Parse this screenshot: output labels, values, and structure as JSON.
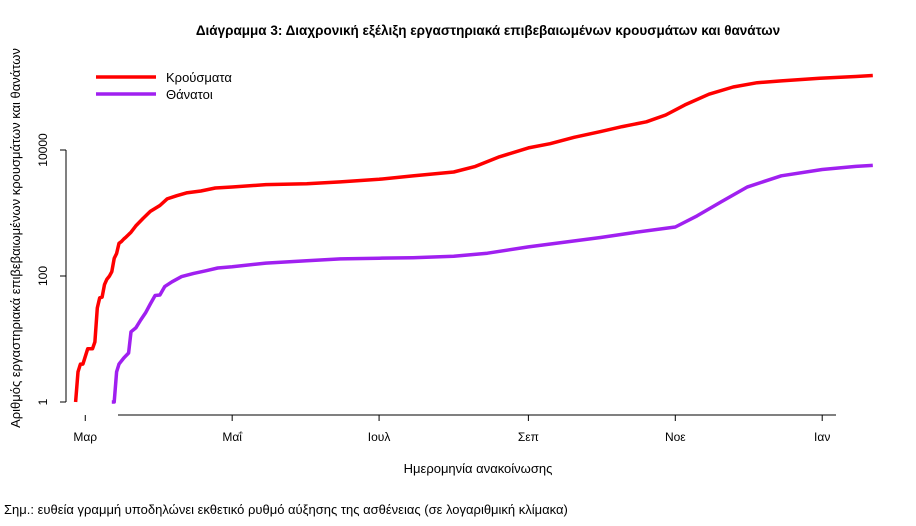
{
  "chart_data": {
    "type": "line",
    "title": "Διάγραμμα 3: Διαχρονική εξέλιξη εργαστηριακά επιβεβαιωμένων κρουσμάτων και θανάτων",
    "xlabel": "Ημερομηνία ανακοίνωσης",
    "ylabel": "Αριθμός εργαστηριακά επιβεβαιωμένων κρουσμάτων και θανάτων",
    "y_scale": "log",
    "ylim": [
      1,
      120000
    ],
    "y_ticks": [
      1,
      100,
      10000
    ],
    "y_tick_labels": [
      "1",
      "100",
      "10000"
    ],
    "xlim": [
      "2020-02-22",
      "2021-01-25"
    ],
    "x_ticks": [
      "2020-03-01",
      "2020-05-01",
      "2020-07-01",
      "2020-09-01",
      "2020-11-01",
      "2021-01-01"
    ],
    "x_tick_labels": [
      "Μαρ",
      "Μαΐ",
      "Ιουλ",
      "Σεπ",
      "Νοε",
      "Ιαν"
    ],
    "legend_position": "top-left",
    "grid": false,
    "series": [
      {
        "name": "Κρούσματα",
        "color": "#ff0000",
        "points": [
          [
            "2020-02-26",
            1
          ],
          [
            "2020-02-27",
            3
          ],
          [
            "2020-02-28",
            4
          ],
          [
            "2020-02-29",
            4
          ],
          [
            "2020-03-02",
            7
          ],
          [
            "2020-03-04",
            7
          ],
          [
            "2020-03-05",
            9
          ],
          [
            "2020-03-06",
            31
          ],
          [
            "2020-03-07",
            45
          ],
          [
            "2020-03-08",
            46
          ],
          [
            "2020-03-09",
            73
          ],
          [
            "2020-03-10",
            89
          ],
          [
            "2020-03-11",
            99
          ],
          [
            "2020-03-12",
            117
          ],
          [
            "2020-03-13",
            190
          ],
          [
            "2020-03-14",
            228
          ],
          [
            "2020-03-15",
            331
          ],
          [
            "2020-03-16",
            352
          ],
          [
            "2020-03-17",
            387
          ],
          [
            "2020-03-18",
            418
          ],
          [
            "2020-03-20",
            495
          ],
          [
            "2020-03-22",
            624
          ],
          [
            "2020-03-25",
            821
          ],
          [
            "2020-03-28",
            1061
          ],
          [
            "2020-04-01",
            1314
          ],
          [
            "2020-04-04",
            1673
          ],
          [
            "2020-04-08",
            1884
          ],
          [
            "2020-04-12",
            2081
          ],
          [
            "2020-04-18",
            2235
          ],
          [
            "2020-04-24",
            2490
          ],
          [
            "2020-05-01",
            2591
          ],
          [
            "2020-05-15",
            2819
          ],
          [
            "2020-06-01",
            2918
          ],
          [
            "2020-06-15",
            3121
          ],
          [
            "2020-07-01",
            3432
          ],
          [
            "2020-07-15",
            3880
          ],
          [
            "2020-08-01",
            4477
          ],
          [
            "2020-08-10",
            5500
          ],
          [
            "2020-08-20",
            7800
          ],
          [
            "2020-09-01",
            10800
          ],
          [
            "2020-09-10",
            12600
          ],
          [
            "2020-09-20",
            15900
          ],
          [
            "2020-10-01",
            19600
          ],
          [
            "2020-10-10",
            23500
          ],
          [
            "2020-10-20",
            28000
          ],
          [
            "2020-10-28",
            36000
          ],
          [
            "2020-11-05",
            52000
          ],
          [
            "2020-11-15",
            77000
          ],
          [
            "2020-11-25",
            100000
          ],
          [
            "2020-12-05",
            117000
          ],
          [
            "2020-12-15",
            125000
          ],
          [
            "2020-12-31",
            138000
          ],
          [
            "2021-01-15",
            147000
          ],
          [
            "2021-01-22",
            152000
          ]
        ]
      },
      {
        "name": "Θάνατοι",
        "color": "#a020f0",
        "points": [
          [
            "2020-03-12",
            1
          ],
          [
            "2020-03-13",
            1
          ],
          [
            "2020-03-14",
            3
          ],
          [
            "2020-03-15",
            4
          ],
          [
            "2020-03-17",
            5
          ],
          [
            "2020-03-19",
            6
          ],
          [
            "2020-03-20",
            13
          ],
          [
            "2020-03-22",
            15
          ],
          [
            "2020-03-24",
            20
          ],
          [
            "2020-03-26",
            26
          ],
          [
            "2020-03-28",
            36
          ],
          [
            "2020-03-30",
            49
          ],
          [
            "2020-04-01",
            50
          ],
          [
            "2020-04-03",
            68
          ],
          [
            "2020-04-06",
            81
          ],
          [
            "2020-04-10",
            98
          ],
          [
            "2020-04-15",
            110
          ],
          [
            "2020-04-20",
            121
          ],
          [
            "2020-04-25",
            134
          ],
          [
            "2020-05-01",
            140
          ],
          [
            "2020-05-15",
            160
          ],
          [
            "2020-06-01",
            175
          ],
          [
            "2020-06-15",
            187
          ],
          [
            "2020-07-01",
            192
          ],
          [
            "2020-07-15",
            195
          ],
          [
            "2020-08-01",
            206
          ],
          [
            "2020-08-15",
            230
          ],
          [
            "2020-09-01",
            290
          ],
          [
            "2020-09-15",
            340
          ],
          [
            "2020-10-01",
            409
          ],
          [
            "2020-10-15",
            490
          ],
          [
            "2020-11-01",
            600
          ],
          [
            "2020-11-10",
            900
          ],
          [
            "2020-11-20",
            1500
          ],
          [
            "2020-12-01",
            2600
          ],
          [
            "2020-12-15",
            3900
          ],
          [
            "2021-01-01",
            4900
          ],
          [
            "2021-01-15",
            5500
          ],
          [
            "2021-01-22",
            5700
          ]
        ]
      }
    ]
  },
  "footnote": "Σημ.: ευθεία γραμμή υποδηλώνει εκθετικό ρυθμό αύξησης της ασθένειας (σε λογαριθμική κλίμακα)"
}
